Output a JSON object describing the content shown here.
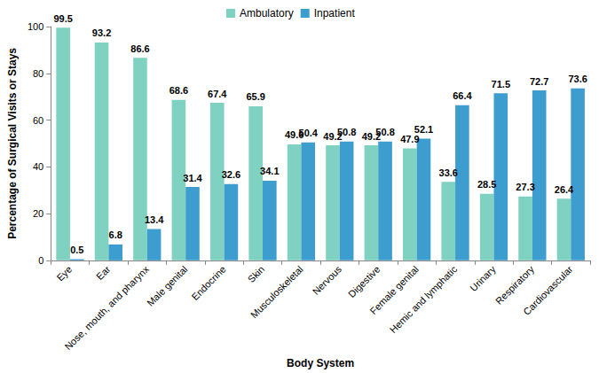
{
  "chart_data": {
    "type": "bar",
    "x_label": "Body System",
    "y_label": "Percentage of Surgical Visits or Stays",
    "categories": [
      "Eye",
      "Ear",
      "Nose, mouth, and pharynx",
      "Male genital",
      "Endocrine",
      "Skin",
      "Musculoskeletal",
      "Nervous",
      "Digestive",
      "Female genital",
      "Hemic and lymphatic",
      "Urinary",
      "Respiratory",
      "Cardiovascular"
    ],
    "series": [
      {
        "name": "Ambulatory",
        "color": "#7fd1c1",
        "values": [
          99.5,
          93.2,
          86.6,
          68.6,
          67.4,
          65.9,
          49.6,
          49.2,
          49.2,
          47.9,
          33.6,
          28.5,
          27.3,
          26.4
        ]
      },
      {
        "name": "Inpatient",
        "color": "#3d9dcf",
        "values": [
          0.5,
          6.8,
          13.4,
          31.4,
          32.6,
          34.1,
          50.4,
          50.8,
          50.8,
          52.1,
          66.4,
          71.5,
          72.7,
          73.6
        ]
      }
    ],
    "ylim": [
      0,
      100
    ],
    "yticks": [
      0,
      20,
      40,
      60,
      80,
      100
    ],
    "grid": false,
    "legend": "top",
    "data_labels": true
  }
}
